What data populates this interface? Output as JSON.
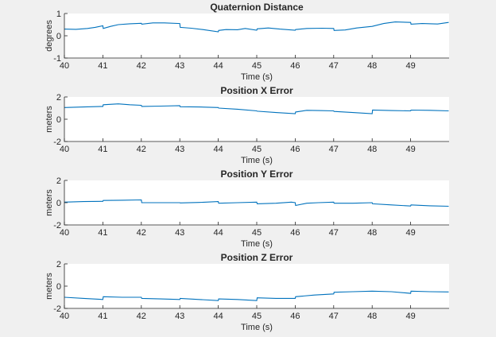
{
  "chart_data": [
    {
      "type": "line",
      "title": "Quaternion Distance",
      "xlabel": "Time (s)",
      "ylabel": "degrees",
      "xlim": [
        40,
        50
      ],
      "ylim": [
        -1,
        1
      ],
      "xticks": [
        40,
        41,
        42,
        43,
        44,
        45,
        46,
        47,
        48,
        49
      ],
      "yticks": [
        -1,
        0,
        1
      ],
      "color": "#0072bd",
      "grid": false,
      "x": [
        40.0,
        40.3,
        40.6,
        40.8,
        41.0,
        41.01,
        41.2,
        41.4,
        41.7,
        42.0,
        42.01,
        42.3,
        42.6,
        43.0,
        43.01,
        43.3,
        43.6,
        44.0,
        44.01,
        44.2,
        44.5,
        44.7,
        45.0,
        45.01,
        45.3,
        45.6,
        46.0,
        46.01,
        46.3,
        46.7,
        47.0,
        47.01,
        47.3,
        47.6,
        48.0,
        48.3,
        48.6,
        49.0,
        49.01,
        49.3,
        49.7,
        49.99
      ],
      "y": [
        0.3,
        0.29,
        0.33,
        0.38,
        0.45,
        0.33,
        0.42,
        0.5,
        0.54,
        0.56,
        0.52,
        0.58,
        0.58,
        0.55,
        0.38,
        0.34,
        0.28,
        0.18,
        0.24,
        0.28,
        0.27,
        0.33,
        0.25,
        0.31,
        0.35,
        0.3,
        0.25,
        0.28,
        0.33,
        0.34,
        0.33,
        0.24,
        0.26,
        0.35,
        0.42,
        0.55,
        0.62,
        0.6,
        0.52,
        0.55,
        0.53,
        0.6
      ]
    },
    {
      "type": "line",
      "title": "Position X Error",
      "xlabel": "Time (s)",
      "ylabel": "meters",
      "xlim": [
        40,
        50
      ],
      "ylim": [
        -2,
        2
      ],
      "xticks": [
        40,
        41,
        42,
        43,
        44,
        45,
        46,
        47,
        48,
        49
      ],
      "yticks": [
        -2,
        0,
        2
      ],
      "color": "#0072bd",
      "grid": false,
      "x": [
        40.0,
        40.5,
        41.0,
        41.01,
        41.4,
        41.7,
        42.0,
        42.01,
        42.5,
        43.0,
        43.01,
        43.5,
        44.0,
        44.01,
        44.5,
        45.0,
        45.01,
        45.5,
        46.0,
        46.01,
        46.3,
        46.6,
        47.0,
        47.01,
        47.5,
        48.0,
        48.01,
        48.5,
        49.0,
        49.01,
        49.5,
        49.99
      ],
      "y": [
        1.05,
        1.1,
        1.15,
        1.3,
        1.38,
        1.3,
        1.25,
        1.15,
        1.18,
        1.22,
        1.12,
        1.1,
        1.05,
        1.0,
        0.9,
        0.75,
        0.72,
        0.6,
        0.5,
        0.65,
        0.8,
        0.78,
        0.75,
        0.7,
        0.6,
        0.5,
        0.82,
        0.78,
        0.75,
        0.82,
        0.8,
        0.75
      ]
    },
    {
      "type": "line",
      "title": "Position Y Error",
      "xlabel": "Time (s)",
      "ylabel": "meters",
      "xlim": [
        40,
        50
      ],
      "ylim": [
        -2,
        2
      ],
      "xticks": [
        40,
        41,
        42,
        43,
        44,
        45,
        46,
        47,
        48,
        49
      ],
      "yticks": [
        -2,
        0,
        2
      ],
      "color": "#0072bd",
      "grid": false,
      "x": [
        40.0,
        40.5,
        41.0,
        41.01,
        41.5,
        42.0,
        42.01,
        42.5,
        43.0,
        43.01,
        43.5,
        44.0,
        44.01,
        44.5,
        45.0,
        45.01,
        45.5,
        45.9,
        46.0,
        46.01,
        46.3,
        46.6,
        47.0,
        47.01,
        47.5,
        48.0,
        48.01,
        48.5,
        49.0,
        49.01,
        49.5,
        49.99
      ],
      "y": [
        0.05,
        0.1,
        0.12,
        0.2,
        0.22,
        0.25,
        0.0,
        0.0,
        0.0,
        -0.02,
        0.02,
        0.1,
        -0.05,
        0.0,
        0.05,
        -0.1,
        -0.05,
        0.05,
        0.0,
        -0.25,
        -0.05,
        0.0,
        0.05,
        -0.05,
        -0.05,
        0.0,
        -0.1,
        -0.2,
        -0.3,
        -0.2,
        -0.28,
        -0.32
      ]
    },
    {
      "type": "line",
      "title": "Position Z Error",
      "xlabel": "Time (s)",
      "ylabel": "meters",
      "xlim": [
        40,
        50
      ],
      "ylim": [
        -2,
        2
      ],
      "xticks": [
        40,
        41,
        42,
        43,
        44,
        45,
        46,
        47,
        48,
        49
      ],
      "yticks": [
        -2,
        0,
        2
      ],
      "color": "#0072bd",
      "grid": false,
      "x": [
        40.0,
        40.5,
        41.0,
        41.01,
        41.5,
        42.0,
        42.01,
        42.5,
        43.0,
        43.01,
        43.5,
        44.0,
        44.01,
        44.5,
        45.0,
        45.01,
        45.5,
        46.0,
        46.01,
        46.5,
        47.0,
        47.01,
        47.5,
        48.0,
        48.5,
        49.0,
        49.01,
        49.5,
        49.99
      ],
      "y": [
        -1.0,
        -1.1,
        -1.2,
        -0.95,
        -1.0,
        -1.0,
        -1.1,
        -1.15,
        -1.2,
        -1.1,
        -1.2,
        -1.3,
        -1.15,
        -1.2,
        -1.3,
        -1.05,
        -1.1,
        -1.1,
        -0.95,
        -0.8,
        -0.7,
        -0.55,
        -0.5,
        -0.45,
        -0.5,
        -0.65,
        -0.45,
        -0.5,
        -0.52
      ]
    }
  ]
}
